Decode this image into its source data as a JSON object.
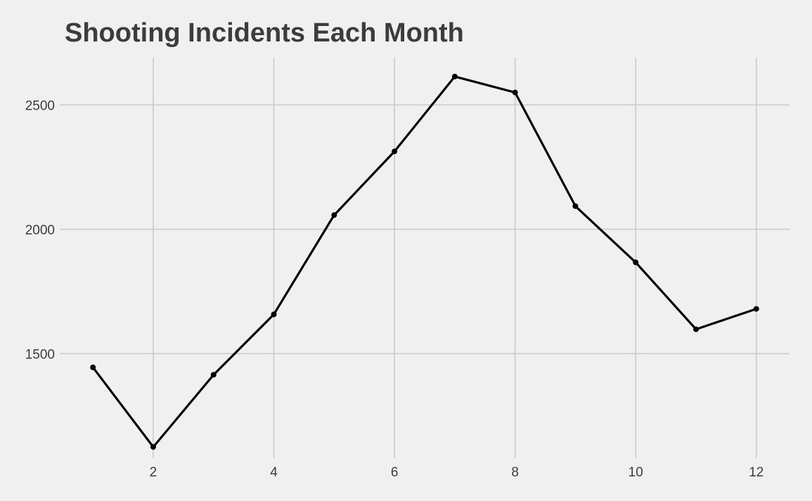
{
  "chart_data": {
    "type": "line",
    "title": "Shooting Incidents Each Month",
    "xlabel": "",
    "ylabel": "",
    "x": [
      1,
      2,
      3,
      4,
      5,
      6,
      7,
      8,
      9,
      10,
      11,
      12
    ],
    "series": [
      {
        "values": [
          1445,
          1125,
          1415,
          1658,
          2057,
          2313,
          2614,
          2550,
          2093,
          1867,
          1598,
          1680
        ]
      }
    ],
    "x_ticks": [
      2,
      4,
      6,
      8,
      10,
      12
    ],
    "y_ticks": [
      1500,
      2000,
      2500
    ],
    "xlim": [
      0.45,
      12.55
    ],
    "ylim": [
      1080,
      2690
    ],
    "grid": true,
    "line_color": "#000000",
    "background_color": "#f0f0f0",
    "grid_color": "#cbcbcb",
    "text_color": "#3c3c3c"
  }
}
